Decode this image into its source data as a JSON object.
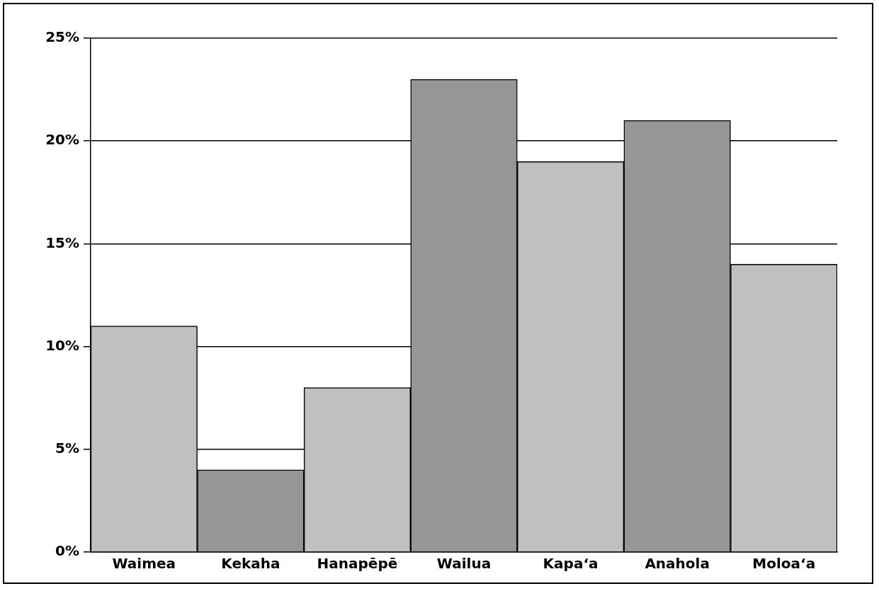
{
  "chart_data": {
    "type": "bar",
    "categories": [
      "Waimea",
      "Kekaha",
      "Hanapēpē",
      "Wailua",
      "Kapa‘a",
      "Anahola",
      "Moloa‘a"
    ],
    "values": [
      11,
      4,
      8,
      23,
      19,
      21,
      14
    ],
    "colors": [
      "#c0c0c0",
      "#969696",
      "#c0c0c0",
      "#969696",
      "#c0c0c0",
      "#969696",
      "#c0c0c0"
    ],
    "ylim": [
      0,
      25
    ],
    "yticks": [
      {
        "value": 0,
        "label": "0%"
      },
      {
        "value": 5,
        "label": "5%"
      },
      {
        "value": 10,
        "label": "10%"
      },
      {
        "value": 15,
        "label": "15%"
      },
      {
        "value": 20,
        "label": "20%"
      },
      {
        "value": 25,
        "label": "25%"
      }
    ],
    "grid": "y"
  }
}
